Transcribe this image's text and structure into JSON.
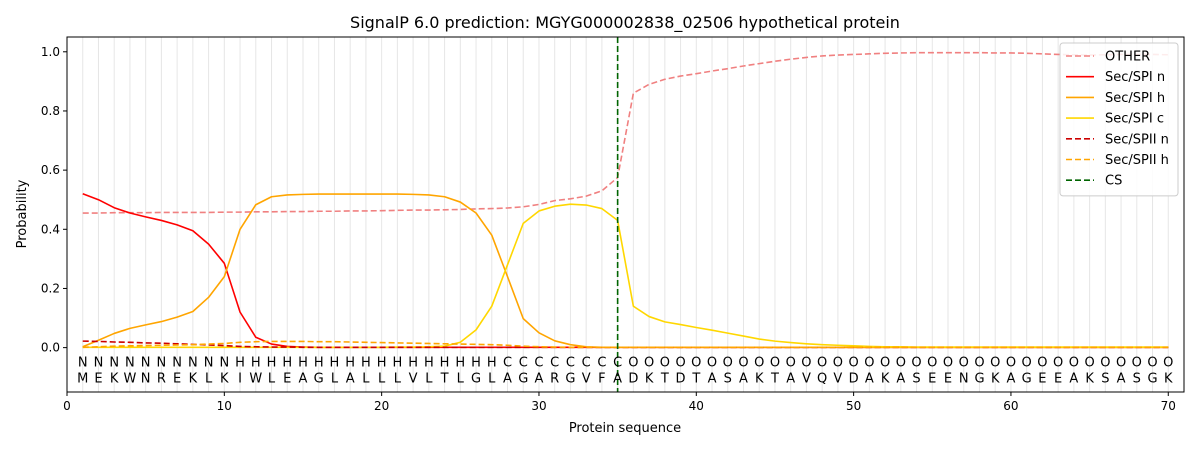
{
  "chart_data": {
    "type": "line",
    "title": "SignalP 6.0 prediction: MGYG000002838_02506 hypothetical protein",
    "xlabel": "Protein sequence",
    "ylabel": "Probability",
    "xlim": [
      0,
      71
    ],
    "ylim": [
      -0.15,
      1.05
    ],
    "x_ticks": [
      0,
      10,
      20,
      30,
      40,
      50,
      60,
      70
    ],
    "y_ticks": [
      0.0,
      0.2,
      0.4,
      0.6,
      0.8,
      1.0
    ],
    "x_tick_labels": [
      "0",
      "10",
      "20",
      "30",
      "40",
      "50",
      "60",
      "70"
    ],
    "y_tick_labels": [
      "0.0",
      "0.2",
      "0.4",
      "0.6",
      "0.8",
      "1.0"
    ],
    "grid": "vertical lines at each residue",
    "legend_position": "top-right",
    "sequence": [
      "M",
      "E",
      "K",
      "W",
      "N",
      "R",
      "E",
      "K",
      "L",
      "K",
      "I",
      "W",
      "L",
      "E",
      "A",
      "G",
      "L",
      "A",
      "L",
      "L",
      "L",
      "V",
      "L",
      "T",
      "L",
      "G",
      "L",
      "A",
      "G",
      "A",
      "R",
      "G",
      "V",
      "F",
      "A",
      "D",
      "K",
      "T",
      "D",
      "T",
      "A",
      "S",
      "A",
      "K",
      "T",
      "A",
      "V",
      "Q",
      "V",
      "D",
      "A",
      "K",
      "A",
      "S",
      "E",
      "E",
      "N",
      "G",
      "K",
      "A",
      "G",
      "E",
      "E",
      "A",
      "K",
      "S",
      "A",
      "S",
      "G",
      "K"
    ],
    "labels": [
      "N",
      "N",
      "N",
      "N",
      "N",
      "N",
      "N",
      "N",
      "N",
      "N",
      "H",
      "H",
      "H",
      "H",
      "H",
      "H",
      "H",
      "H",
      "H",
      "H",
      "H",
      "H",
      "H",
      "H",
      "H",
      "H",
      "H",
      "C",
      "C",
      "C",
      "C",
      "C",
      "C",
      "C",
      "C",
      "O",
      "O",
      "O",
      "O",
      "O",
      "O",
      "O",
      "O",
      "O",
      "O",
      "O",
      "O",
      "O",
      "O",
      "O",
      "O",
      "O",
      "O",
      "O",
      "O",
      "O",
      "O",
      "O",
      "O",
      "O",
      "O",
      "O",
      "O",
      "O",
      "O",
      "O",
      "O",
      "O",
      "O",
      "O"
    ],
    "label_colors": {
      "N": "#ff0000",
      "H": "#ffa500",
      "C": "#ffd700",
      "O": "#808080"
    },
    "cs_position": 35,
    "series": [
      {
        "name": "OTHER",
        "color": "#f08080",
        "dash": true,
        "values": [
          0.455,
          0.455,
          0.456,
          0.456,
          0.456,
          0.457,
          0.457,
          0.457,
          0.457,
          0.458,
          0.458,
          0.459,
          0.459,
          0.46,
          0.46,
          0.461,
          0.461,
          0.462,
          0.462,
          0.463,
          0.464,
          0.465,
          0.465,
          0.466,
          0.467,
          0.469,
          0.47,
          0.472,
          0.476,
          0.484,
          0.497,
          0.503,
          0.512,
          0.53,
          0.575,
          0.86,
          0.89,
          0.907,
          0.918,
          0.926,
          0.935,
          0.943,
          0.952,
          0.96,
          0.968,
          0.975,
          0.981,
          0.986,
          0.989,
          0.991,
          0.993,
          0.995,
          0.996,
          0.997,
          0.997,
          0.997,
          0.997,
          0.997,
          0.996,
          0.996,
          0.995,
          0.993,
          0.991,
          0.99,
          0.989,
          0.99,
          0.991,
          0.991,
          0.991,
          0.99
        ]
      },
      {
        "name": "Sec/SPI n",
        "color": "#ff0000",
        "dash": false,
        "values": [
          0.52,
          0.5,
          0.473,
          0.455,
          0.442,
          0.43,
          0.415,
          0.395,
          0.35,
          0.285,
          0.12,
          0.035,
          0.012,
          0.004,
          0.002,
          0.001,
          0.001,
          0.001,
          0.001,
          0.001,
          0.001,
          0.001,
          0.001,
          0.001,
          0.001,
          0.001,
          0.001,
          0.001,
          0.001,
          0.001,
          0.001,
          0.001,
          0.001,
          0.001,
          0.001,
          0.001,
          0.001,
          0.001,
          0.001,
          0.001,
          0.001,
          0.001,
          0.001,
          0.001,
          0.001,
          0.001,
          0.001,
          0.001,
          0.001,
          0.001,
          0.001,
          0.001,
          0.001,
          0.001,
          0.001,
          0.001,
          0.001,
          0.001,
          0.001,
          0.001,
          0.001,
          0.001,
          0.001,
          0.001,
          0.001,
          0.001,
          0.001,
          0.001,
          0.001,
          0.001
        ]
      },
      {
        "name": "Sec/SPI h",
        "color": "#ffa500",
        "dash": false,
        "values": [
          0.003,
          0.025,
          0.048,
          0.065,
          0.077,
          0.088,
          0.103,
          0.122,
          0.17,
          0.24,
          0.4,
          0.483,
          0.51,
          0.516,
          0.518,
          0.519,
          0.519,
          0.519,
          0.519,
          0.519,
          0.519,
          0.518,
          0.516,
          0.51,
          0.492,
          0.455,
          0.38,
          0.24,
          0.098,
          0.05,
          0.023,
          0.01,
          0.003,
          0.001,
          0.001,
          0.001,
          0.001,
          0.001,
          0.001,
          0.001,
          0.001,
          0.001,
          0.001,
          0.001,
          0.001,
          0.001,
          0.001,
          0.001,
          0.001,
          0.001,
          0.001,
          0.001,
          0.001,
          0.001,
          0.001,
          0.001,
          0.001,
          0.001,
          0.001,
          0.001,
          0.001,
          0.001,
          0.001,
          0.001,
          0.001,
          0.001,
          0.001,
          0.001,
          0.001,
          0.001
        ]
      },
      {
        "name": "Sec/SPI c",
        "color": "#ffd700",
        "dash": false,
        "values": [
          0.001,
          0.001,
          0.001,
          0.001,
          0.001,
          0.001,
          0.001,
          0.001,
          0.001,
          0.001,
          0.001,
          0.001,
          0.001,
          0.001,
          0.001,
          0.001,
          0.001,
          0.001,
          0.001,
          0.001,
          0.002,
          0.002,
          0.003,
          0.005,
          0.018,
          0.06,
          0.14,
          0.28,
          0.42,
          0.462,
          0.478,
          0.485,
          0.482,
          0.47,
          0.43,
          0.14,
          0.105,
          0.087,
          0.078,
          0.068,
          0.059,
          0.049,
          0.039,
          0.029,
          0.022,
          0.017,
          0.013,
          0.01,
          0.008,
          0.006,
          0.004,
          0.003,
          0.003,
          0.002,
          0.002,
          0.002,
          0.002,
          0.002,
          0.002,
          0.002,
          0.002,
          0.002,
          0.002,
          0.002,
          0.002,
          0.002,
          0.002,
          0.002,
          0.002,
          0.002
        ]
      },
      {
        "name": "Sec/SPII n",
        "color": "#cc0000",
        "dash": true,
        "values": [
          0.022,
          0.021,
          0.019,
          0.018,
          0.016,
          0.015,
          0.013,
          0.011,
          0.009,
          0.007,
          0.004,
          0.003,
          0.002,
          0.002,
          0.001,
          0.001,
          0.001,
          0.001,
          0.001,
          0.001,
          0.001,
          0.001,
          0.001,
          0.001,
          0.001,
          0.001,
          0.001,
          0.001,
          0.001,
          0.001,
          0.001,
          0.001,
          0.001,
          0.001,
          0.001,
          0.001,
          0.001,
          0.001,
          0.001,
          0.001,
          0.001,
          0.001,
          0.001,
          0.001,
          0.001,
          0.001,
          0.001,
          0.001,
          0.001,
          0.001,
          0.001,
          0.001,
          0.001,
          0.001,
          0.001,
          0.001,
          0.001,
          0.001,
          0.001,
          0.001,
          0.001,
          0.001,
          0.001,
          0.001,
          0.001,
          0.001,
          0.001,
          0.001,
          0.001,
          0.001
        ]
      },
      {
        "name": "Sec/SPII h",
        "color": "#ffa500",
        "dash": true,
        "values": [
          0.001,
          0.003,
          0.005,
          0.006,
          0.007,
          0.008,
          0.009,
          0.01,
          0.012,
          0.014,
          0.018,
          0.02,
          0.021,
          0.021,
          0.021,
          0.02,
          0.02,
          0.019,
          0.018,
          0.017,
          0.016,
          0.015,
          0.014,
          0.013,
          0.012,
          0.011,
          0.01,
          0.008,
          0.005,
          0.003,
          0.002,
          0.001,
          0.001,
          0.001,
          0.001,
          0.001,
          0.001,
          0.001,
          0.001,
          0.001,
          0.001,
          0.001,
          0.001,
          0.001,
          0.001,
          0.001,
          0.001,
          0.001,
          0.001,
          0.001,
          0.001,
          0.001,
          0.001,
          0.001,
          0.001,
          0.001,
          0.001,
          0.001,
          0.001,
          0.001,
          0.001,
          0.001,
          0.001,
          0.001,
          0.001,
          0.001,
          0.001,
          0.001,
          0.001,
          0.001
        ]
      }
    ],
    "legend": [
      {
        "name": "OTHER",
        "color": "#f08080",
        "dash": true
      },
      {
        "name": "Sec/SPI n",
        "color": "#ff0000",
        "dash": false
      },
      {
        "name": "Sec/SPI h",
        "color": "#ffa500",
        "dash": false
      },
      {
        "name": "Sec/SPI c",
        "color": "#ffd700",
        "dash": false
      },
      {
        "name": "Sec/SPII n",
        "color": "#cc0000",
        "dash": true
      },
      {
        "name": "Sec/SPII h",
        "color": "#ffa500",
        "dash": true
      },
      {
        "name": "CS",
        "color": "#006400",
        "dash": true
      }
    ]
  }
}
